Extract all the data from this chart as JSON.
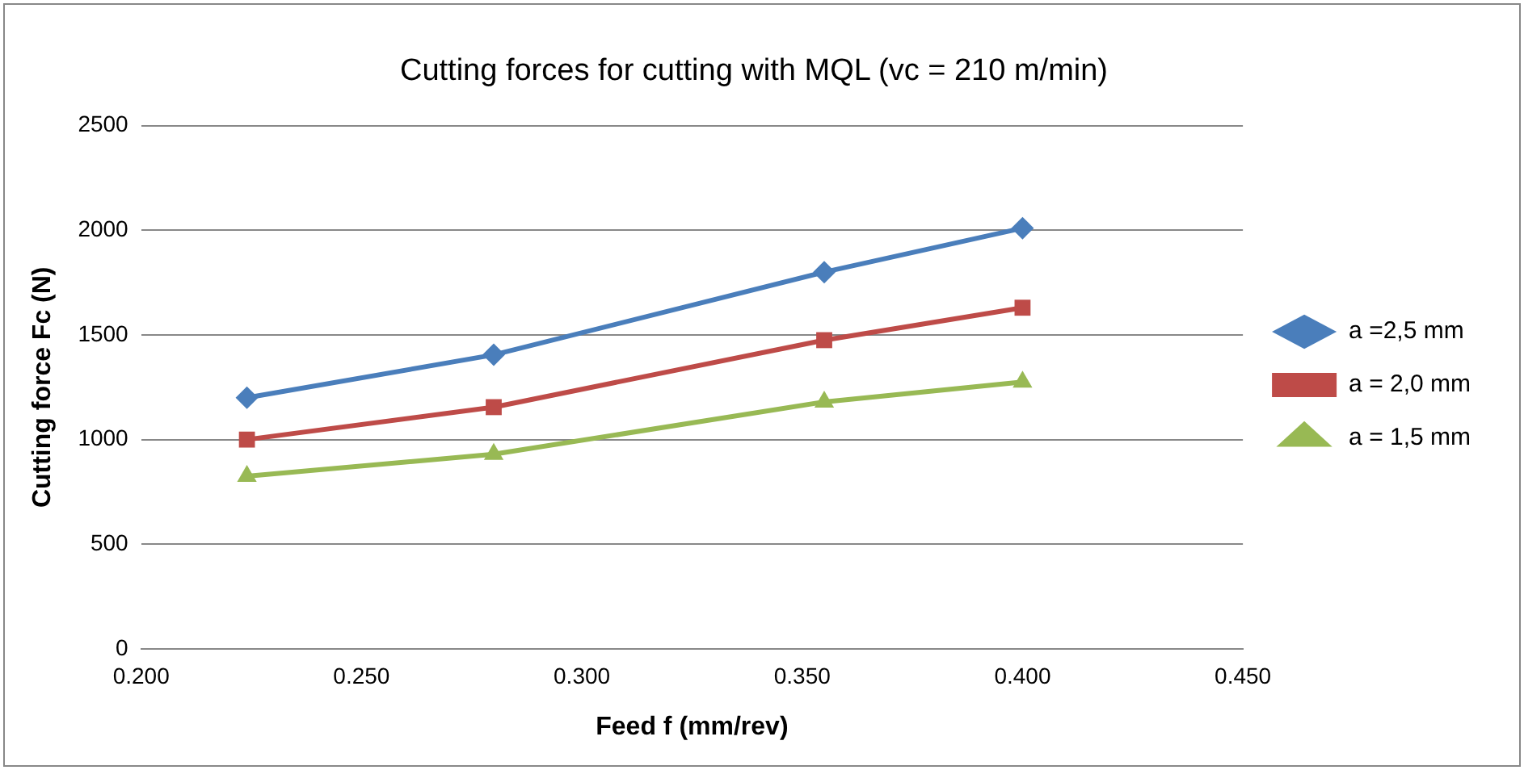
{
  "chart_data": {
    "type": "line",
    "title": "Cutting forces for cutting with MQL (vc = 210 m/min)",
    "xlabel": "Feed f (mm/rev)",
    "ylabel": "Cutting force Fc (N)",
    "x": [
      0.224,
      0.28,
      0.355,
      0.4
    ],
    "series": [
      {
        "name": "a =2,5 mm",
        "color": "#4a7ebb",
        "marker": "diamond",
        "values": [
          1200,
          1405,
          1800,
          2010
        ]
      },
      {
        "name": "a = 2,0 mm",
        "color": "#be4b48",
        "marker": "square",
        "values": [
          1000,
          1155,
          1475,
          1630
        ]
      },
      {
        "name": "a = 1,5 mm",
        "color": "#98b954",
        "marker": "triangle",
        "values": [
          825,
          930,
          1180,
          1275
        ]
      }
    ],
    "xlim": [
      0.2,
      0.45
    ],
    "xticks": [
      {
        "value": 0.2,
        "label": "0.200"
      },
      {
        "value": 0.25,
        "label": "0.250"
      },
      {
        "value": 0.3,
        "label": "0.300"
      },
      {
        "value": 0.35,
        "label": "0.350"
      },
      {
        "value": 0.4,
        "label": "0.400"
      },
      {
        "value": 0.45,
        "label": "0.450"
      }
    ],
    "ylim": [
      0,
      2500
    ],
    "yticks": [
      0,
      500,
      1000,
      1500,
      2000,
      2500
    ],
    "grid": "y",
    "legend": "right"
  }
}
